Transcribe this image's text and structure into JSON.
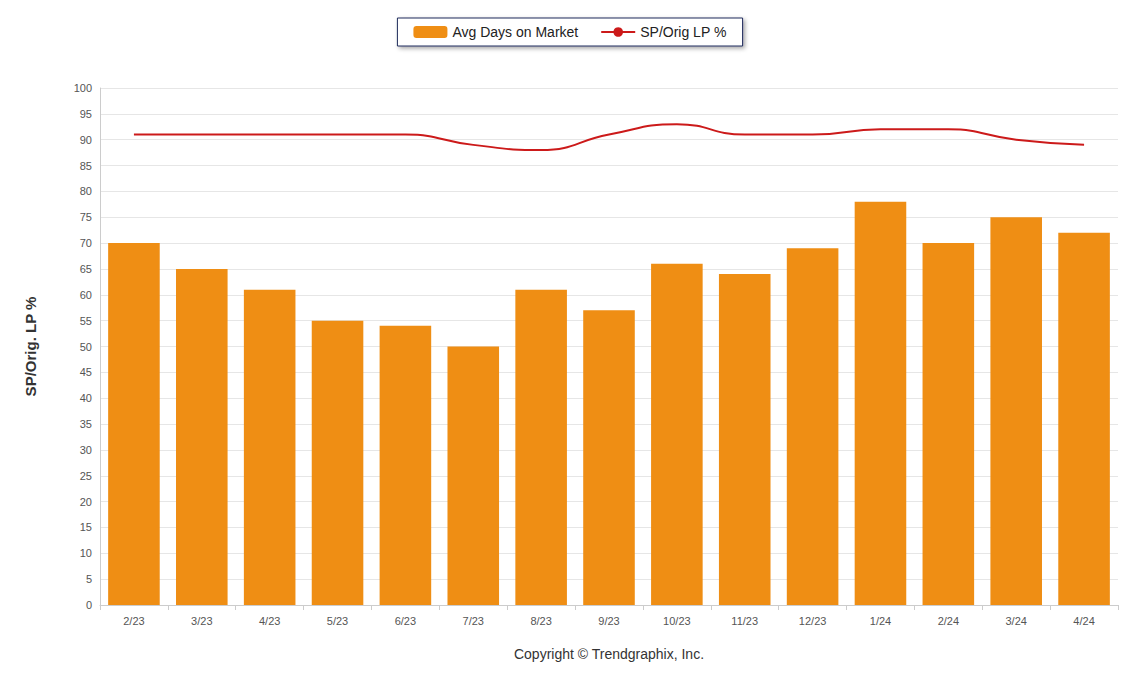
{
  "chart_data": {
    "type": "bar",
    "ylabel": "SP/Orig. LP %",
    "xlabel": "Copyright © Trendgraphix, Inc.",
    "categories": [
      "2/23",
      "3/23",
      "4/23",
      "5/23",
      "6/23",
      "7/23",
      "8/23",
      "9/23",
      "10/23",
      "11/23",
      "12/23",
      "1/24",
      "2/24",
      "3/24",
      "4/24"
    ],
    "series": [
      {
        "name": "Avg Days on Market",
        "type": "bar",
        "color": "#ef8e14",
        "values": [
          70,
          65,
          61,
          55,
          54,
          50,
          61,
          57,
          66,
          64,
          69,
          78,
          70,
          75,
          72
        ]
      },
      {
        "name": "SP/Orig LP %",
        "type": "line",
        "color": "#cc1a1a",
        "marker": "none",
        "line_style": "solid",
        "values": [
          91,
          91,
          91,
          91,
          91,
          89,
          88,
          91,
          93,
          91,
          91,
          92,
          92,
          90,
          89
        ]
      }
    ],
    "ylim": [
      0,
      100
    ],
    "yticks": [
      0,
      5,
      10,
      15,
      20,
      25,
      30,
      35,
      40,
      45,
      50,
      55,
      60,
      65,
      70,
      75,
      80,
      85,
      90,
      95,
      100
    ],
    "grid": true,
    "legend": "top"
  }
}
